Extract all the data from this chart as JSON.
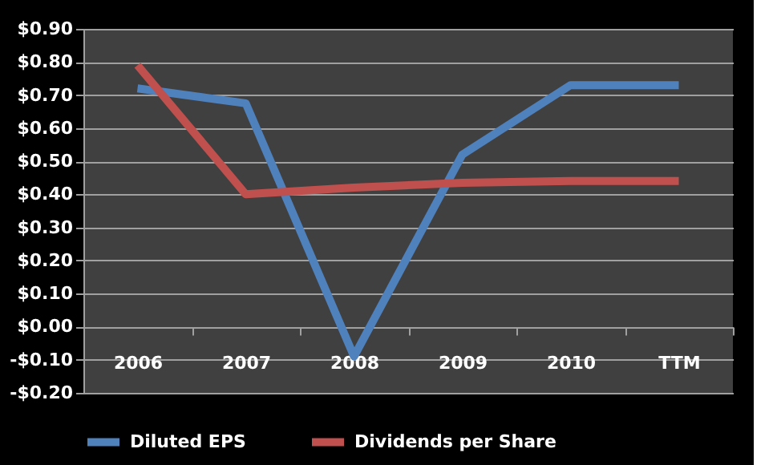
{
  "chart_data": {
    "type": "line",
    "categories": [
      "2006",
      "2007",
      "2008",
      "2009",
      "2010",
      "TTM"
    ],
    "series": [
      {
        "name": "Diluted EPS",
        "color": "#4f81bd",
        "values": [
          0.72,
          0.675,
          -0.09,
          0.52,
          0.73,
          0.73
        ]
      },
      {
        "name": "Dividends per Share",
        "color": "#c0504d",
        "values": [
          0.79,
          0.4,
          0.42,
          0.435,
          0.44,
          0.44
        ]
      }
    ],
    "ylim": [
      -0.2,
      0.9
    ],
    "yticks": [
      {
        "value": -0.2,
        "label": "-$0.20"
      },
      {
        "value": -0.1,
        "label": "-$0.10"
      },
      {
        "value": 0,
        "label": "$0.00"
      },
      {
        "value": 0.1,
        "label": "$0.10"
      },
      {
        "value": 0.2,
        "label": "$0.20"
      },
      {
        "value": 0.3,
        "label": "$0.30"
      },
      {
        "value": 0.4,
        "label": "$0.40"
      },
      {
        "value": 0.5,
        "label": "$0.50"
      },
      {
        "value": 0.6,
        "label": "$0.60"
      },
      {
        "value": 0.7,
        "label": "$0.70"
      },
      {
        "value": 0.8,
        "label": "$0.80"
      },
      {
        "value": 0.9,
        "label": "$0.90"
      }
    ],
    "grid": "y",
    "legend": "bottom",
    "marker": "none",
    "line_style": "solid"
  }
}
